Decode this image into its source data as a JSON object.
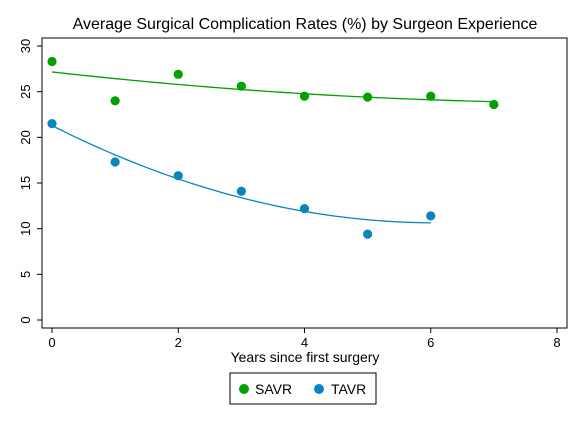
{
  "chart_data": {
    "type": "scatter",
    "title": "Average Surgical Complication Rates (%) by Surgeon Experience",
    "xlabel": "Years since first surgery",
    "ylabel": "",
    "xlim": [
      0,
      8
    ],
    "ylim": [
      0,
      30
    ],
    "x_ticks": [
      "0",
      "2",
      "4",
      "6",
      "8"
    ],
    "y_ticks": [
      "0",
      "5",
      "10",
      "15",
      "20",
      "25",
      "30"
    ],
    "grid": false,
    "legend": {
      "position": "bottom",
      "boxed": true
    },
    "fit": "quadratic",
    "series": [
      {
        "name": "SAVR",
        "color": "#00a000",
        "x": [
          0,
          1,
          2,
          3,
          4,
          5,
          6,
          7
        ],
        "y": [
          28.3,
          24.0,
          26.9,
          25.6,
          24.5,
          24.4,
          24.5,
          23.6
        ]
      },
      {
        "name": "TAVR",
        "color": "#0a86be",
        "x": [
          0,
          1,
          2,
          3,
          4,
          5,
          6
        ],
        "y": [
          21.5,
          17.3,
          15.8,
          14.1,
          12.2,
          9.4,
          11.4
        ]
      }
    ]
  }
}
